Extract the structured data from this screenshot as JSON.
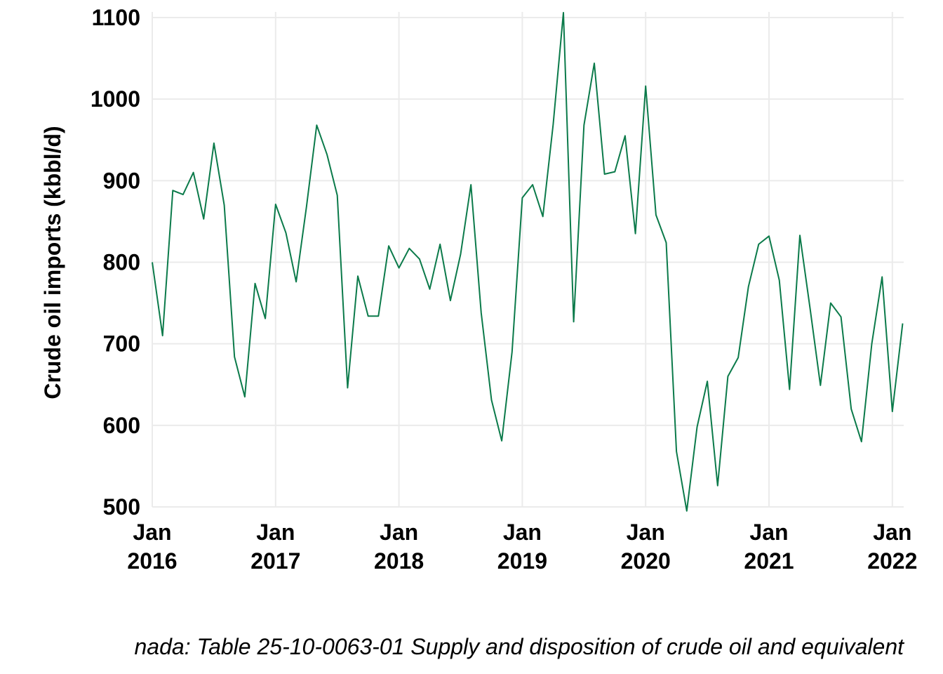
{
  "chart_data": {
    "type": "line",
    "ylabel": "Crude oil imports (kbbl/d)",
    "xlabel": "",
    "caption": "nada: Table 25-10-0063-01  Supply and disposition of crude oil and equivalent",
    "ylim": [
      500,
      1100
    ],
    "yticks": [
      500,
      600,
      700,
      800,
      900,
      1000,
      1100
    ],
    "xticks": [
      {
        "line1": "Jan",
        "line2": "2016",
        "date": "2016-01"
      },
      {
        "line1": "Jan",
        "line2": "2017",
        "date": "2017-01"
      },
      {
        "line1": "Jan",
        "line2": "2018",
        "date": "2018-01"
      },
      {
        "line1": "Jan",
        "line2": "2019",
        "date": "2019-01"
      },
      {
        "line1": "Jan",
        "line2": "2020",
        "date": "2020-01"
      },
      {
        "line1": "Jan",
        "line2": "2021",
        "date": "2021-01"
      },
      {
        "line1": "Jan",
        "line2": "2022",
        "date": "2022-01"
      }
    ],
    "grid": true,
    "line_color": "#0b7a4a",
    "x": [
      "2016-01",
      "2016-02",
      "2016-03",
      "2016-04",
      "2016-05",
      "2016-06",
      "2016-07",
      "2016-08",
      "2016-09",
      "2016-10",
      "2016-11",
      "2016-12",
      "2017-01",
      "2017-02",
      "2017-03",
      "2017-04",
      "2017-05",
      "2017-06",
      "2017-07",
      "2017-08",
      "2017-09",
      "2017-10",
      "2017-11",
      "2017-12",
      "2018-01",
      "2018-02",
      "2018-03",
      "2018-04",
      "2018-05",
      "2018-06",
      "2018-07",
      "2018-08",
      "2018-09",
      "2018-10",
      "2018-11",
      "2018-12",
      "2019-01",
      "2019-02",
      "2019-03",
      "2019-04",
      "2019-05",
      "2019-06",
      "2019-07",
      "2019-08",
      "2019-09",
      "2019-10",
      "2019-11",
      "2019-12",
      "2020-01",
      "2020-02",
      "2020-03",
      "2020-04",
      "2020-05",
      "2020-06",
      "2020-07",
      "2020-08",
      "2020-09",
      "2020-10",
      "2020-11",
      "2020-12",
      "2021-01",
      "2021-02",
      "2021-03",
      "2021-04",
      "2021-05",
      "2021-06",
      "2021-07",
      "2021-08",
      "2021-09",
      "2021-10",
      "2021-11",
      "2021-12",
      "2022-01",
      "2022-02"
    ],
    "values": [
      800,
      710,
      888,
      883,
      910,
      853,
      946,
      870,
      684,
      635,
      774,
      731,
      871,
      836,
      776,
      868,
      968,
      932,
      882,
      646,
      783,
      734,
      734,
      820,
      793,
      817,
      804,
      767,
      822,
      753,
      810,
      895,
      738,
      631,
      581,
      690,
      879,
      895,
      856,
      969,
      1106,
      727,
      968,
      1044,
      908,
      911,
      955,
      835,
      1016,
      858,
      824,
      568,
      495,
      598,
      654,
      526,
      660,
      683,
      770,
      822,
      832,
      778,
      644,
      833,
      743,
      649,
      750,
      733,
      620,
      580,
      700,
      782,
      617,
      725
    ]
  }
}
